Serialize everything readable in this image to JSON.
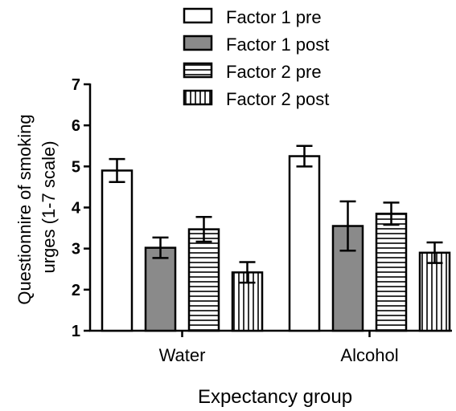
{
  "chart_data": {
    "type": "bar",
    "xlabel": "Expectancy group",
    "ylabel_lines": [
      "Questionnire of smoking",
      "urges (1-7 scale)"
    ],
    "categories": [
      "Water",
      "Alcohol"
    ],
    "ylim": [
      1,
      7
    ],
    "yticks": [
      "1",
      "2",
      "3",
      "4",
      "5",
      "6",
      "7"
    ],
    "grid": false,
    "legend_position": "top",
    "series": [
      {
        "name": "Factor 1 pre",
        "pattern": "white",
        "values": [
          4.9,
          5.25
        ],
        "errors": [
          0.28,
          0.25
        ]
      },
      {
        "name": "Factor 1 post",
        "pattern": "gray",
        "values": [
          3.02,
          3.55
        ],
        "errors": [
          0.25,
          0.6
        ]
      },
      {
        "name": "Factor 2 pre",
        "pattern": "horizontal",
        "values": [
          3.47,
          3.85
        ],
        "errors": [
          0.3,
          0.27
        ]
      },
      {
        "name": "Factor 2 post",
        "pattern": "vertical",
        "values": [
          2.42,
          2.9
        ],
        "errors": [
          0.25,
          0.25
        ]
      }
    ],
    "colors": {
      "gray_fill": "#8a8a8a",
      "stroke": "#000000",
      "background": "#ffffff"
    }
  }
}
